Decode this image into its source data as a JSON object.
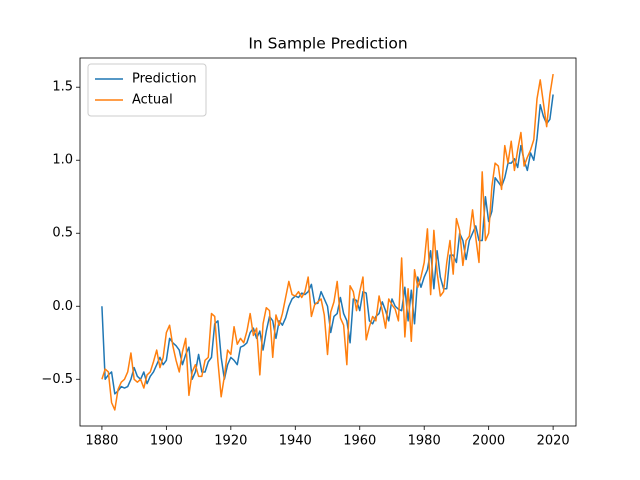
{
  "chart_data": {
    "type": "line",
    "title": "In Sample Prediction",
    "x": [
      1880,
      1881,
      1882,
      1883,
      1884,
      1885,
      1886,
      1887,
      1888,
      1889,
      1890,
      1891,
      1892,
      1893,
      1894,
      1895,
      1896,
      1897,
      1898,
      1899,
      1900,
      1901,
      1902,
      1903,
      1904,
      1905,
      1906,
      1907,
      1908,
      1909,
      1910,
      1911,
      1912,
      1913,
      1914,
      1915,
      1916,
      1917,
      1918,
      1919,
      1920,
      1921,
      1922,
      1923,
      1924,
      1925,
      1926,
      1927,
      1928,
      1929,
      1930,
      1931,
      1932,
      1933,
      1934,
      1935,
      1936,
      1937,
      1938,
      1939,
      1940,
      1941,
      1942,
      1943,
      1944,
      1945,
      1946,
      1947,
      1948,
      1949,
      1950,
      1951,
      1952,
      1953,
      1954,
      1955,
      1956,
      1957,
      1958,
      1959,
      1960,
      1961,
      1962,
      1963,
      1964,
      1965,
      1966,
      1967,
      1968,
      1969,
      1970,
      1971,
      1972,
      1973,
      1974,
      1975,
      1976,
      1977,
      1978,
      1979,
      1980,
      1981,
      1982,
      1983,
      1984,
      1985,
      1986,
      1987,
      1988,
      1989,
      1990,
      1991,
      1992,
      1993,
      1994,
      1995,
      1996,
      1997,
      1998,
      1999,
      2000,
      2001,
      2002,
      2003,
      2004,
      2005,
      2006,
      2007,
      2008,
      2009,
      2010,
      2011,
      2012,
      2013,
      2014,
      2015,
      2016,
      2017,
      2018,
      2019,
      2020
    ],
    "series": [
      {
        "name": "Prediction",
        "color": "#1f77b4",
        "values": [
          0.0,
          -0.5,
          -0.47,
          -0.45,
          -0.6,
          -0.58,
          -0.55,
          -0.56,
          -0.55,
          -0.5,
          -0.42,
          -0.48,
          -0.5,
          -0.45,
          -0.53,
          -0.48,
          -0.45,
          -0.4,
          -0.35,
          -0.4,
          -0.37,
          -0.22,
          -0.25,
          -0.27,
          -0.3,
          -0.4,
          -0.33,
          -0.28,
          -0.5,
          -0.45,
          -0.33,
          -0.45,
          -0.45,
          -0.38,
          -0.35,
          -0.12,
          -0.1,
          -0.35,
          -0.5,
          -0.4,
          -0.35,
          -0.37,
          -0.4,
          -0.28,
          -0.27,
          -0.25,
          -0.18,
          -0.15,
          -0.22,
          -0.17,
          -0.3,
          -0.17,
          -0.07,
          -0.1,
          -0.22,
          -0.1,
          -0.13,
          -0.08,
          0.0,
          0.05,
          0.07,
          0.06,
          0.09,
          0.08,
          0.1,
          0.15,
          0.02,
          0.02,
          0.1,
          0.05,
          0.0,
          -0.18,
          -0.07,
          -0.05,
          0.06,
          -0.05,
          -0.1,
          -0.25,
          0.05,
          0.04,
          -0.03,
          0.1,
          0.09,
          -0.1,
          -0.12,
          -0.07,
          -0.05,
          0.03,
          -0.03,
          -0.1,
          0.05,
          0.0,
          -0.02,
          -0.03,
          0.13,
          -0.1,
          0.11,
          -0.12,
          0.2,
          0.13,
          0.2,
          0.25,
          0.38,
          0.12,
          0.38,
          0.2,
          0.12,
          0.12,
          0.35,
          0.35,
          0.3,
          0.5,
          0.45,
          0.32,
          0.45,
          0.5,
          0.55,
          0.45,
          0.45,
          0.75,
          0.58,
          0.65,
          0.88,
          0.85,
          0.82,
          0.88,
          0.98,
          0.98,
          1.01,
          0.95,
          1.1,
          1.0,
          0.93,
          1.05,
          1.0,
          1.15,
          1.38,
          1.3,
          1.25,
          1.28,
          1.45
        ]
      },
      {
        "name": "Actual",
        "color": "#ff7f0e",
        "values": [
          -0.5,
          -0.43,
          -0.45,
          -0.66,
          -0.71,
          -0.57,
          -0.52,
          -0.5,
          -0.45,
          -0.32,
          -0.5,
          -0.52,
          -0.5,
          -0.56,
          -0.47,
          -0.45,
          -0.38,
          -0.3,
          -0.42,
          -0.35,
          -0.18,
          -0.13,
          -0.27,
          -0.37,
          -0.45,
          -0.31,
          -0.22,
          -0.61,
          -0.45,
          -0.4,
          -0.48,
          -0.48,
          -0.37,
          -0.35,
          -0.05,
          -0.07,
          -0.38,
          -0.62,
          -0.48,
          -0.3,
          -0.33,
          -0.14,
          -0.26,
          -0.22,
          -0.25,
          -0.17,
          -0.05,
          -0.2,
          -0.15,
          -0.47,
          -0.12,
          -0.01,
          -0.03,
          -0.35,
          -0.06,
          -0.13,
          -0.05,
          0.06,
          0.17,
          0.08,
          0.07,
          0.1,
          0.06,
          0.1,
          0.2,
          -0.07,
          0.01,
          0.03,
          0.05,
          -0.06,
          -0.33,
          -0.04,
          0.03,
          0.17,
          -0.08,
          -0.13,
          -0.4,
          0.14,
          0.1,
          -0.03,
          0.1,
          0.2,
          -0.23,
          -0.14,
          -0.07,
          -0.1,
          0.07,
          -0.03,
          -0.15,
          0.05,
          0.01,
          -0.02,
          -0.1,
          0.33,
          -0.21,
          0.12,
          -0.24,
          0.25,
          0.13,
          0.2,
          0.3,
          0.53,
          0.08,
          0.52,
          0.23,
          0.07,
          0.1,
          0.3,
          0.45,
          0.22,
          0.6,
          0.52,
          0.28,
          0.45,
          0.48,
          0.66,
          0.47,
          0.3,
          0.92,
          0.45,
          0.5,
          0.82,
          0.98,
          0.96,
          0.8,
          1.1,
          0.98,
          1.13,
          0.93,
          1.07,
          1.19,
          0.96,
          1.02,
          1.07,
          1.14,
          1.42,
          1.55,
          1.39,
          1.23,
          1.45,
          1.59
        ]
      }
    ],
    "xlim": [
      1873.2,
      2027.1
    ],
    "xticks": [
      1880,
      1900,
      1920,
      1940,
      1960,
      1980,
      2000,
      2020
    ],
    "ylim": [
      -0.82,
      1.7
    ],
    "yticks": [
      {
        "value": -0.5,
        "label": "−0.5"
      },
      {
        "value": 0,
        "label": "0.0"
      },
      0.5,
      {
        "value": 1,
        "label": "1.0"
      },
      1.5
    ],
    "legend": "upper left"
  }
}
